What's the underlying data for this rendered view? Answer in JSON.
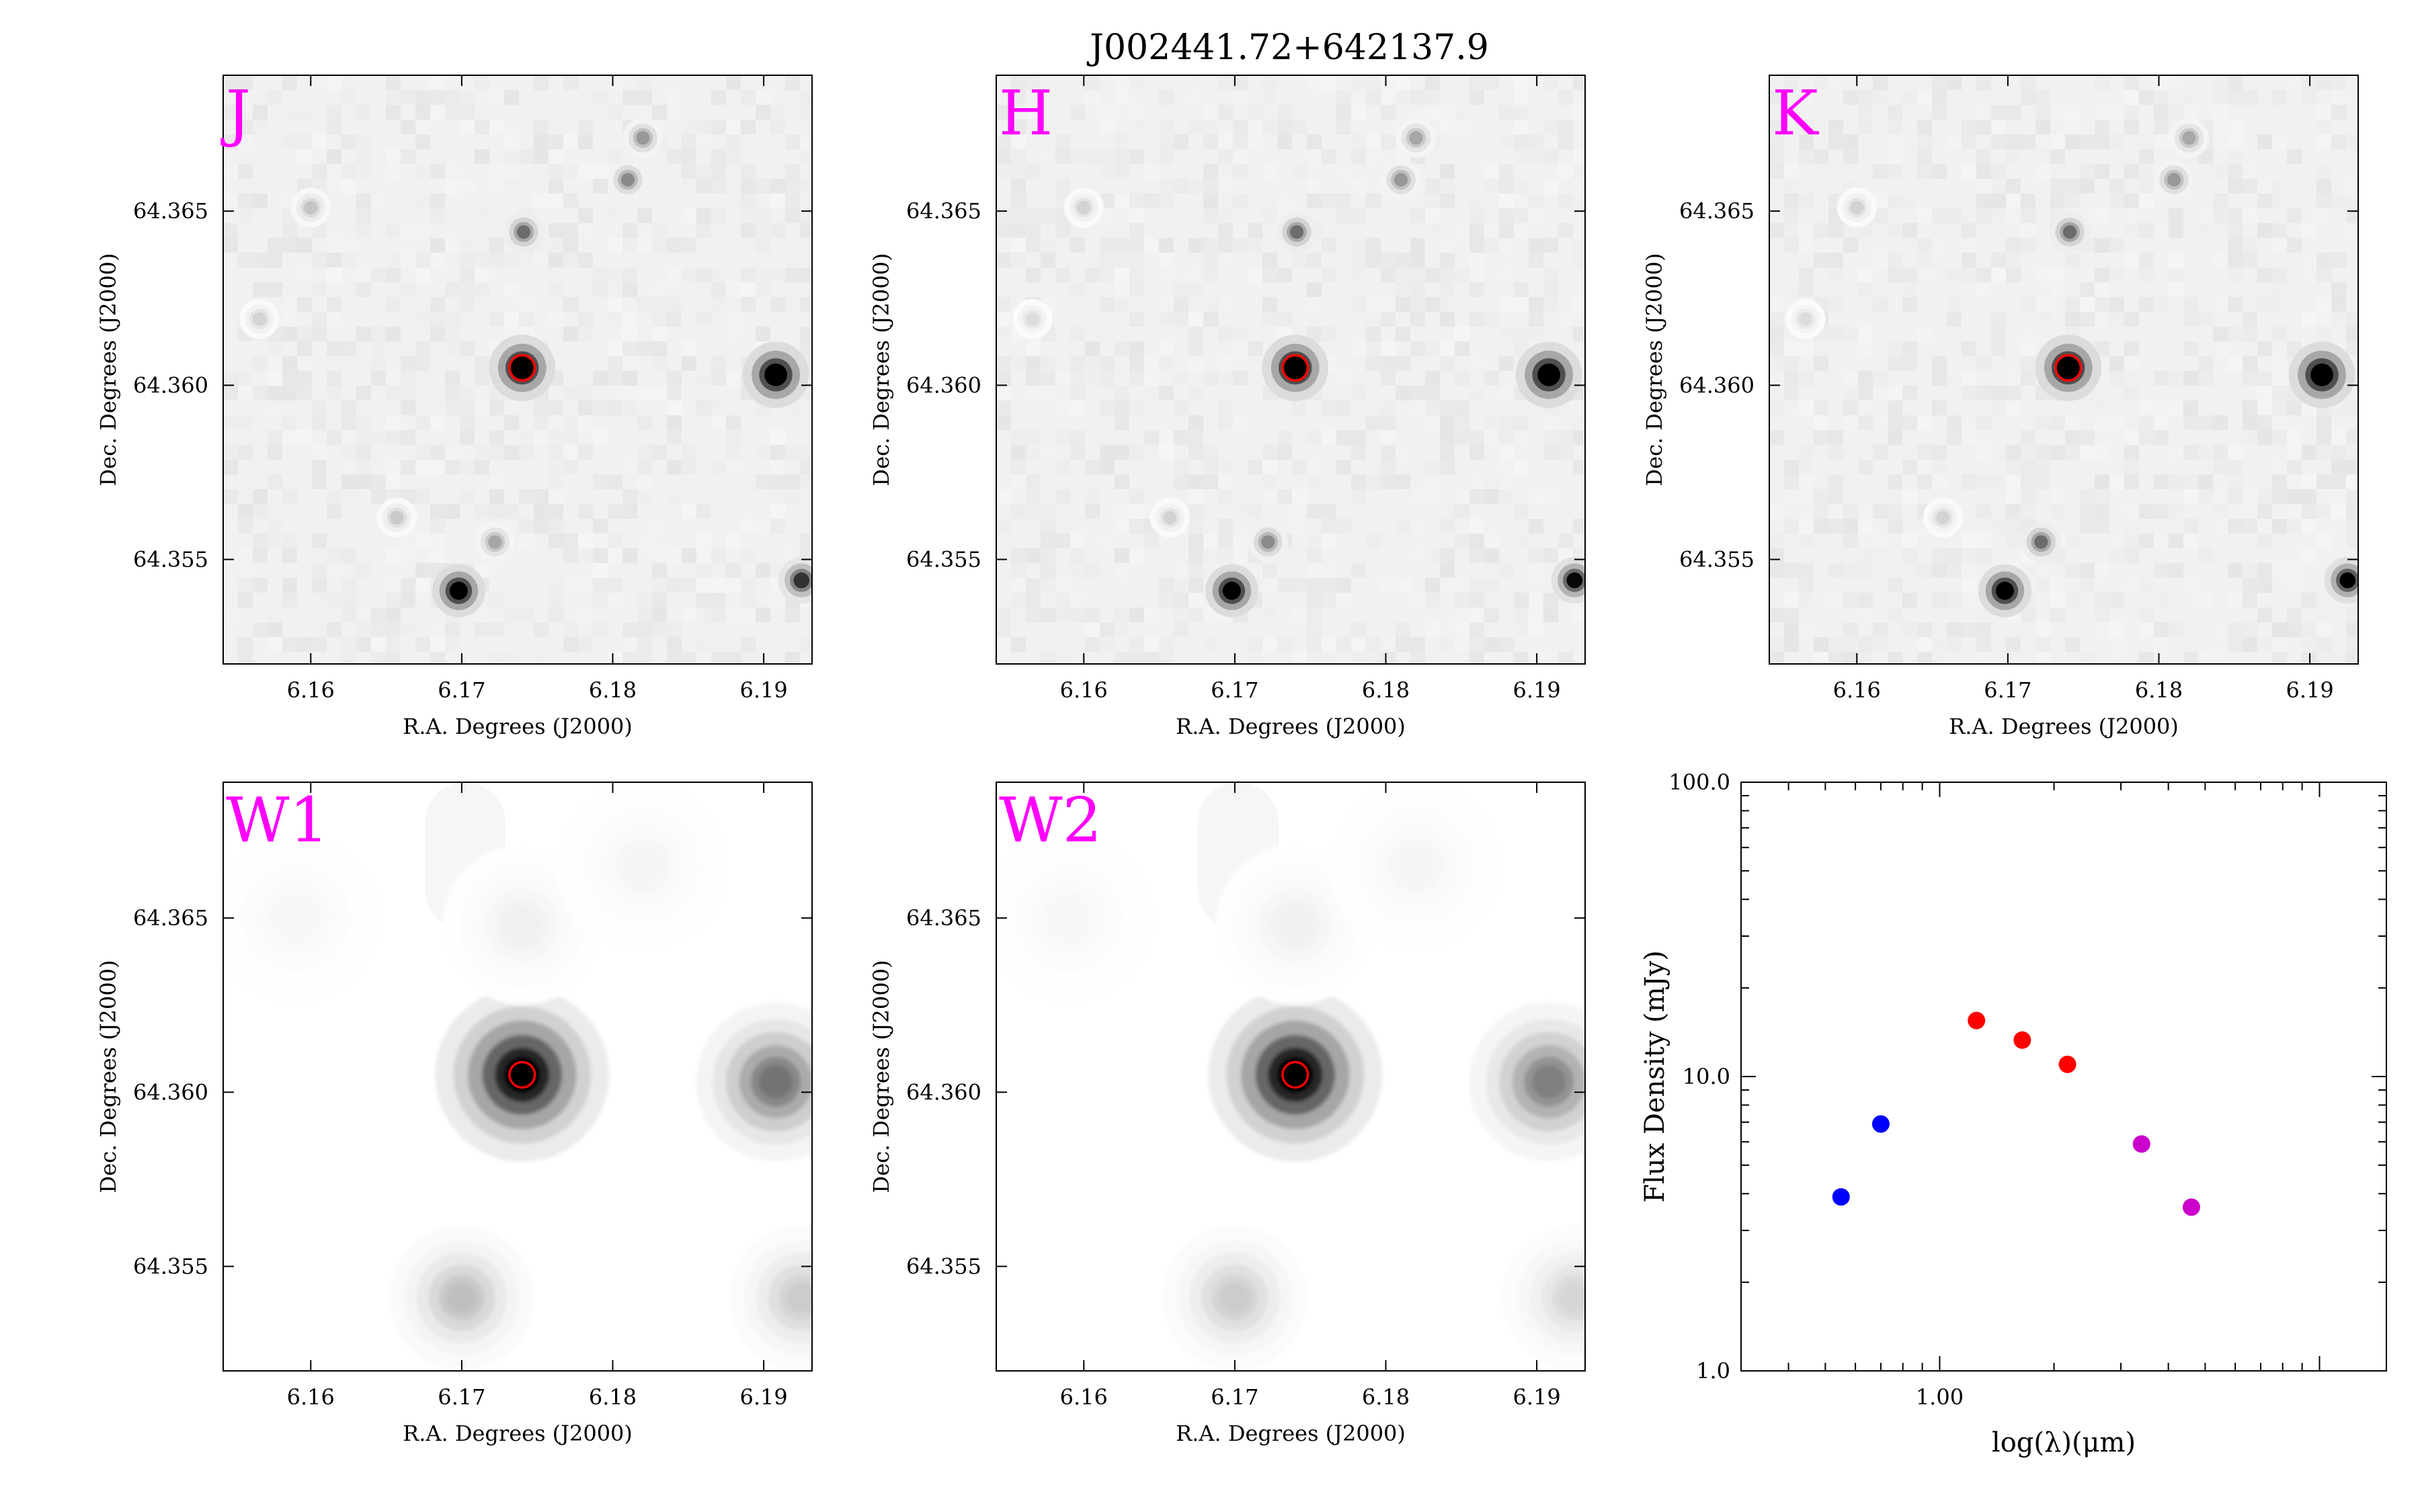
{
  "title": "J002441.72+642137.9",
  "colors": {
    "band_label": "#ff00ff",
    "aperture": "#ff0000",
    "frame": "#000000",
    "sed_blue": "#0000ff",
    "sed_red": "#ff0000",
    "sed_magenta": "#cc00cc"
  },
  "axis_text": {
    "xlabel": "R.A. Degrees (J2000)",
    "ylabel": "Dec. Degrees (J2000)",
    "xticks": [
      "6.16",
      "6.17",
      "6.18",
      "6.19"
    ],
    "yticks": [
      "64.365",
      "64.360",
      "64.355"
    ]
  },
  "image_panels": [
    {
      "band": "J",
      "style": "nir",
      "sources": [
        {
          "ra": 6.174,
          "dec": 64.3605,
          "intensity": 1.0,
          "width": 0.001
        },
        {
          "ra": 6.1908,
          "dec": 64.3603,
          "intensity": 1.0,
          "width": 0.001
        },
        {
          "ra": 6.1698,
          "dec": 64.3541,
          "intensity": 1.0,
          "width": 0.0008
        },
        {
          "ra": 6.1925,
          "dec": 64.3544,
          "intensity": 0.7,
          "width": 0.0007
        },
        {
          "ra": 6.1741,
          "dec": 64.3644,
          "intensity": 0.5,
          "width": 0.0006
        },
        {
          "ra": 6.181,
          "dec": 64.3659,
          "intensity": 0.4,
          "width": 0.0006
        },
        {
          "ra": 6.182,
          "dec": 64.3671,
          "intensity": 0.35,
          "width": 0.0006
        },
        {
          "ra": 6.16,
          "dec": 64.3651,
          "intensity": 0.2,
          "width": 0.0006
        },
        {
          "ra": 6.1566,
          "dec": 64.3619,
          "intensity": 0.15,
          "width": 0.0006
        },
        {
          "ra": 6.1722,
          "dec": 64.3555,
          "intensity": 0.3,
          "width": 0.0006
        },
        {
          "ra": 6.1657,
          "dec": 64.3562,
          "intensity": 0.18,
          "width": 0.0006
        }
      ]
    },
    {
      "band": "H",
      "style": "nir",
      "sources": [
        {
          "ra": 6.174,
          "dec": 64.3605,
          "intensity": 1.0,
          "width": 0.001
        },
        {
          "ra": 6.1908,
          "dec": 64.3603,
          "intensity": 1.0,
          "width": 0.001
        },
        {
          "ra": 6.1698,
          "dec": 64.3541,
          "intensity": 1.0,
          "width": 0.0008
        },
        {
          "ra": 6.1925,
          "dec": 64.3544,
          "intensity": 0.85,
          "width": 0.0007
        },
        {
          "ra": 6.1741,
          "dec": 64.3644,
          "intensity": 0.5,
          "width": 0.0006
        },
        {
          "ra": 6.181,
          "dec": 64.3659,
          "intensity": 0.35,
          "width": 0.0006
        },
        {
          "ra": 6.182,
          "dec": 64.3671,
          "intensity": 0.3,
          "width": 0.0006
        },
        {
          "ra": 6.16,
          "dec": 64.3651,
          "intensity": 0.15,
          "width": 0.0006
        },
        {
          "ra": 6.1566,
          "dec": 64.3619,
          "intensity": 0.12,
          "width": 0.0006
        },
        {
          "ra": 6.1722,
          "dec": 64.3555,
          "intensity": 0.4,
          "width": 0.0006
        },
        {
          "ra": 6.1657,
          "dec": 64.3562,
          "intensity": 0.15,
          "width": 0.0006
        }
      ]
    },
    {
      "band": "K",
      "style": "nir",
      "sources": [
        {
          "ra": 6.174,
          "dec": 64.3605,
          "intensity": 1.0,
          "width": 0.001
        },
        {
          "ra": 6.1908,
          "dec": 64.3603,
          "intensity": 1.0,
          "width": 0.001
        },
        {
          "ra": 6.1698,
          "dec": 64.3541,
          "intensity": 1.0,
          "width": 0.0008
        },
        {
          "ra": 6.1925,
          "dec": 64.3544,
          "intensity": 0.9,
          "width": 0.0007
        },
        {
          "ra": 6.1741,
          "dec": 64.3644,
          "intensity": 0.5,
          "width": 0.0006
        },
        {
          "ra": 6.181,
          "dec": 64.3659,
          "intensity": 0.35,
          "width": 0.0006
        },
        {
          "ra": 6.182,
          "dec": 64.3671,
          "intensity": 0.3,
          "width": 0.0006
        },
        {
          "ra": 6.16,
          "dec": 64.3651,
          "intensity": 0.15,
          "width": 0.0006
        },
        {
          "ra": 6.1566,
          "dec": 64.3619,
          "intensity": 0.12,
          "width": 0.0006
        },
        {
          "ra": 6.1722,
          "dec": 64.3555,
          "intensity": 0.5,
          "width": 0.0006
        },
        {
          "ra": 6.1657,
          "dec": 64.3562,
          "intensity": 0.15,
          "width": 0.0006
        }
      ]
    },
    {
      "band": "W1",
      "style": "wise",
      "sources": [
        {
          "ra": 6.174,
          "dec": 64.3605,
          "intensity": 1.0,
          "width": 0.0024
        },
        {
          "ra": 6.1908,
          "dec": 64.3603,
          "intensity": 0.55,
          "width": 0.0022
        },
        {
          "ra": 6.17,
          "dec": 64.3541,
          "intensity": 0.25,
          "width": 0.002
        },
        {
          "ra": 6.1925,
          "dec": 64.3541,
          "intensity": 0.2,
          "width": 0.002
        },
        {
          "ra": 6.174,
          "dec": 64.3648,
          "intensity": 0.06,
          "width": 0.0022
        },
        {
          "ra": 6.182,
          "dec": 64.3665,
          "intensity": 0.04,
          "width": 0.0024
        },
        {
          "ra": 6.159,
          "dec": 64.365,
          "intensity": 0.03,
          "width": 0.0024
        }
      ]
    },
    {
      "band": "W2",
      "style": "wise",
      "sources": [
        {
          "ra": 6.174,
          "dec": 64.3605,
          "intensity": 1.0,
          "width": 0.0024
        },
        {
          "ra": 6.1908,
          "dec": 64.3603,
          "intensity": 0.5,
          "width": 0.0022
        },
        {
          "ra": 6.17,
          "dec": 64.3541,
          "intensity": 0.2,
          "width": 0.002
        },
        {
          "ra": 6.1925,
          "dec": 64.3541,
          "intensity": 0.16,
          "width": 0.002
        },
        {
          "ra": 6.174,
          "dec": 64.3648,
          "intensity": 0.06,
          "width": 0.0022
        },
        {
          "ra": 6.182,
          "dec": 64.3665,
          "intensity": 0.04,
          "width": 0.0024
        },
        {
          "ra": 6.159,
          "dec": 64.365,
          "intensity": 0.03,
          "width": 0.0024
        }
      ]
    }
  ],
  "chart_data": [
    {
      "type": "image",
      "bands": [
        "J",
        "H",
        "K",
        "W1",
        "W2"
      ],
      "title": "J002441.72+642137.9",
      "xlabel": "R.A. Degrees (J2000)",
      "ylabel": "Dec. Degrees (J2000)",
      "xlim": [
        6.1542,
        6.1932
      ],
      "ylim": [
        64.352,
        64.3689
      ],
      "xticks": [
        6.16,
        6.17,
        6.18,
        6.19
      ],
      "yticks": [
        64.355,
        64.36,
        64.365
      ],
      "aperture": {
        "ra": 6.174,
        "dec": 64.3605,
        "radius_deg": 0.0008
      },
      "cmap": "gray_r"
    },
    {
      "type": "scatter",
      "xlabel": "log(λ)(μm)",
      "ylabel": "Flux Density (mJy)",
      "xscale": "log",
      "yscale": "log",
      "xlim": [
        0.3,
        15.0
      ],
      "ylim": [
        1.0,
        100.0
      ],
      "xtick_labels": [
        "1.00"
      ],
      "ytick_labels": [
        "1.0",
        "10.0",
        "100.0"
      ],
      "series": [
        {
          "color": "#0000ff",
          "x": [
            0.55,
            0.7
          ],
          "y": [
            3.9,
            6.9
          ]
        },
        {
          "color": "#ff0000",
          "x": [
            1.25,
            1.65,
            2.17
          ],
          "y": [
            15.5,
            13.3,
            11.0
          ]
        },
        {
          "color": "#cc00cc",
          "x": [
            3.4,
            4.6
          ],
          "y": [
            5.9,
            3.6
          ]
        }
      ]
    }
  ]
}
